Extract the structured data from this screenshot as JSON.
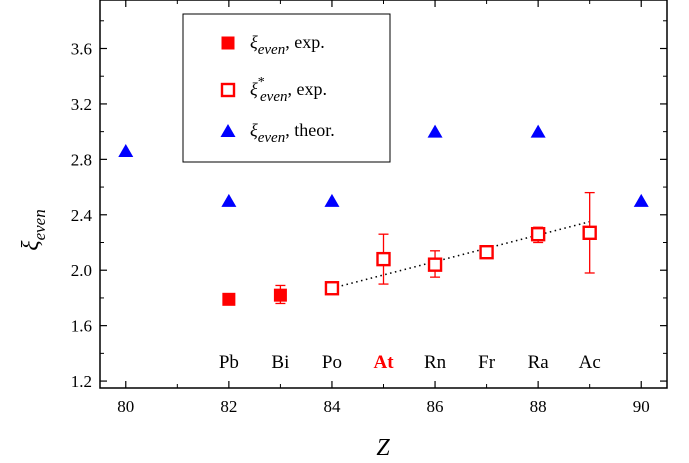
{
  "chart_data": {
    "type": "scatter",
    "xlabel": "Z",
    "ylabel": "ξ_even",
    "ylabel_main": "ξ",
    "ylabel_sub": "even",
    "xlim": [
      79.5,
      90.5
    ],
    "ylim": [
      1.15,
      3.95
    ],
    "xticks": [
      "80",
      "82",
      "84",
      "86",
      "88",
      "90"
    ],
    "xtick_values": [
      80,
      82,
      84,
      86,
      88,
      90
    ],
    "yticks": [
      "1.2",
      "1.6",
      "2.0",
      "2.4",
      "2.8",
      "3.2",
      "3.6"
    ],
    "ytick_values": [
      1.2,
      1.6,
      2.0,
      2.4,
      2.8,
      3.2,
      3.6
    ],
    "grid": false,
    "legend_position": "top-center",
    "colors": {
      "exp": "#ff0000",
      "theor": "#0000ff",
      "trend": "#000000"
    },
    "element_labels": [
      {
        "z": 82,
        "text": "Pb",
        "highlight": false
      },
      {
        "z": 83,
        "text": "Bi",
        "highlight": false
      },
      {
        "z": 84,
        "text": "Po",
        "highlight": false
      },
      {
        "z": 85,
        "text": "At",
        "highlight": true
      },
      {
        "z": 86,
        "text": "Rn",
        "highlight": false
      },
      {
        "z": 87,
        "text": "Fr",
        "highlight": false
      },
      {
        "z": 88,
        "text": "Ra",
        "highlight": false
      },
      {
        "z": 89,
        "text": "Ac",
        "highlight": false
      }
    ],
    "series": [
      {
        "key": "exp_filled",
        "name_main": "ξ",
        "name_sub": "even",
        "name_sup": "",
        "name_rest": ", exp.",
        "marker": "square-filled",
        "points": [
          {
            "x": 82,
            "y": 1.79
          },
          {
            "x": 83,
            "y": 1.82,
            "err_lo": 1.76,
            "err_hi": 1.89
          }
        ]
      },
      {
        "key": "exp_open",
        "name_main": "ξ",
        "name_sub": "even",
        "name_sup": "*",
        "name_rest": ", exp.",
        "marker": "square-open",
        "points": [
          {
            "x": 84,
            "y": 1.87
          },
          {
            "x": 85,
            "y": 2.08,
            "err_lo": 1.9,
            "err_hi": 2.26
          },
          {
            "x": 86,
            "y": 2.04,
            "err_lo": 1.95,
            "err_hi": 2.14
          },
          {
            "x": 87,
            "y": 2.13,
            "err_lo": 2.11,
            "err_hi": 2.16
          },
          {
            "x": 88,
            "y": 2.26,
            "err_lo": 2.2,
            "err_hi": 2.31
          },
          {
            "x": 89,
            "y": 2.27,
            "err_lo": 1.98,
            "err_hi": 2.56
          }
        ]
      },
      {
        "key": "theor",
        "name_main": "ξ",
        "name_sub": "even",
        "name_sup": "",
        "name_rest": ", theor.",
        "marker": "triangle-filled",
        "points": [
          {
            "x": 80,
            "y": 2.86
          },
          {
            "x": 82,
            "y": 2.5
          },
          {
            "x": 84,
            "y": 2.5
          },
          {
            "x": 86,
            "y": 3.0
          },
          {
            "x": 88,
            "y": 3.0
          },
          {
            "x": 90,
            "y": 2.5
          }
        ]
      }
    ],
    "trend_line": {
      "style": "dotted",
      "points": [
        {
          "x": 84,
          "y": 1.87
        },
        {
          "x": 89,
          "y": 2.35
        }
      ]
    }
  }
}
